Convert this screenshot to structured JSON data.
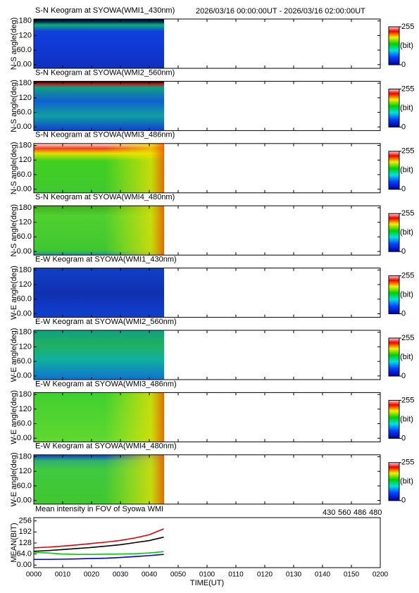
{
  "header": {
    "time_range": "2026/03/16 00:00:00UT - 2026/03/16 02:00:00UT"
  },
  "chart_data": [
    {
      "type": "keogram",
      "title": "S-N Keogram at SYOWA(WMI1_430nm)",
      "y_label": "N-S angle(deg)",
      "ylim": [
        -15,
        188
      ],
      "yticks": [
        {
          "value": 0,
          "label": "0.00"
        },
        {
          "value": 60,
          "label": "60.0"
        },
        120,
        180
      ],
      "colorbar": {
        "lim": [
          0,
          255
        ],
        "ticks": [
          0,
          255
        ],
        "label": "(bit)"
      }
    },
    {
      "type": "keogram",
      "title": "S-N Keogram at SYOWA(WMI2_560nm)",
      "y_label": "N-S angle(deg)",
      "ylim": [
        -15,
        188
      ],
      "yticks": [
        {
          "value": 0,
          "label": "0.00"
        },
        {
          "value": 60,
          "label": "60.0"
        },
        120,
        180
      ],
      "colorbar": {
        "lim": [
          0,
          255
        ],
        "ticks": [
          0,
          255
        ],
        "label": "(bit)"
      }
    },
    {
      "type": "keogram",
      "title": "S-N Keogram at SYOWA(WMI3_486nm)",
      "y_label": "N-S angle(deg)",
      "ylim": [
        -15,
        188
      ],
      "yticks": [
        {
          "value": 0,
          "label": "0.00"
        },
        {
          "value": 60,
          "label": "60.0"
        },
        120,
        180
      ],
      "colorbar": {
        "lim": [
          0,
          255
        ],
        "ticks": [
          0,
          255
        ],
        "label": "(bit)"
      }
    },
    {
      "type": "keogram",
      "title": "S-N Keogram at SYOWA(WMI4_480nm)",
      "y_label": "N-S angle(deg)",
      "ylim": [
        -15,
        188
      ],
      "yticks": [
        {
          "value": 0,
          "label": "0.00"
        },
        {
          "value": 60,
          "label": "60.0"
        },
        120,
        180
      ],
      "colorbar": {
        "lim": [
          0,
          255
        ],
        "ticks": [
          0,
          255
        ],
        "label": "(bit)"
      }
    },
    {
      "type": "keogram",
      "title": "E-W Keogram at SYOWA(WMI1_430nm)",
      "y_label": "W-E angle(deg)",
      "ylim": [
        -15,
        188
      ],
      "yticks": [
        {
          "value": 0,
          "label": "0.00"
        },
        {
          "value": 60,
          "label": "60.0"
        },
        120,
        180
      ],
      "colorbar": {
        "lim": [
          0,
          255
        ],
        "ticks": [
          0,
          255
        ],
        "label": "(bit)"
      }
    },
    {
      "type": "keogram",
      "title": "E-W Keogram at SYOWA(WMI2_560nm)",
      "y_label": "W-E angle(deg)",
      "ylim": [
        -15,
        188
      ],
      "yticks": [
        {
          "value": 0,
          "label": "0.00"
        },
        {
          "value": 60,
          "label": "60.0"
        },
        120,
        180
      ],
      "colorbar": {
        "lim": [
          0,
          255
        ],
        "ticks": [
          0,
          255
        ],
        "label": "(bit)"
      }
    },
    {
      "type": "keogram",
      "title": "E-W Keogram at SYOWA(WMI3_486nm)",
      "y_label": "W-E angle(deg)",
      "ylim": [
        -15,
        188
      ],
      "yticks": [
        {
          "value": 0,
          "label": "0.00"
        },
        {
          "value": 60,
          "label": "60.0"
        },
        120,
        180
      ],
      "colorbar": {
        "lim": [
          0,
          255
        ],
        "ticks": [
          0,
          255
        ],
        "label": "(bit)"
      }
    },
    {
      "type": "keogram",
      "title": "E-W Keogram at SYOWA(WMI4_480nm)",
      "y_label": "W-E angle(deg)",
      "ylim": [
        -15,
        188
      ],
      "yticks": [
        {
          "value": 0,
          "label": "0.00"
        },
        {
          "value": 60,
          "label": "60.0"
        },
        120,
        180
      ],
      "colorbar": {
        "lim": [
          0,
          255
        ],
        "ticks": [
          0,
          255
        ],
        "label": "(bit)"
      }
    },
    {
      "type": "line",
      "title": "Mean intensity in FOV of Syowa WMI",
      "y_label": "MEAN(BIT)",
      "x_label": "TIME(UT)",
      "xlim": [
        0,
        120
      ],
      "xticks": [
        {
          "value": 0,
          "label": "0000"
        },
        {
          "value": 10,
          "label": "0010"
        },
        {
          "value": 20,
          "label": "0020"
        },
        {
          "value": 30,
          "label": "0030"
        },
        {
          "value": 40,
          "label": "0040"
        },
        {
          "value": 50,
          "label": "0050"
        },
        {
          "value": 60,
          "label": "0100"
        },
        {
          "value": 70,
          "label": "0110"
        },
        {
          "value": 80,
          "label": "0120"
        },
        {
          "value": 90,
          "label": "0130"
        },
        {
          "value": 100,
          "label": "0140"
        },
        {
          "value": 110,
          "label": "0150"
        },
        {
          "value": 120,
          "label": "0200"
        }
      ],
      "ylim": [
        -15,
        275
      ],
      "yticks": [
        {
          "value": 0,
          "label": "0.00"
        },
        {
          "value": 64,
          "label": "64.0"
        },
        128,
        192,
        256
      ],
      "x": [
        0,
        5,
        10,
        15,
        20,
        25,
        30,
        35,
        40,
        45
      ],
      "series": [
        {
          "name": "430",
          "color": "#0000cc",
          "values": [
            33,
            33,
            34,
            36,
            38,
            40,
            44,
            49,
            55,
            62
          ]
        },
        {
          "name": "560",
          "color": "#00cc00",
          "values": [
            74,
            70,
            64,
            62,
            62,
            63,
            64,
            66,
            70,
            78
          ]
        },
        {
          "name": "486",
          "color": "#e00000",
          "values": [
            100,
            104,
            110,
            117,
            125,
            133,
            143,
            157,
            176,
            210
          ]
        },
        {
          "name": "480",
          "color": "#000000",
          "values": [
            80,
            84,
            90,
            96,
            102,
            110,
            118,
            130,
            142,
            162
          ]
        }
      ]
    }
  ]
}
